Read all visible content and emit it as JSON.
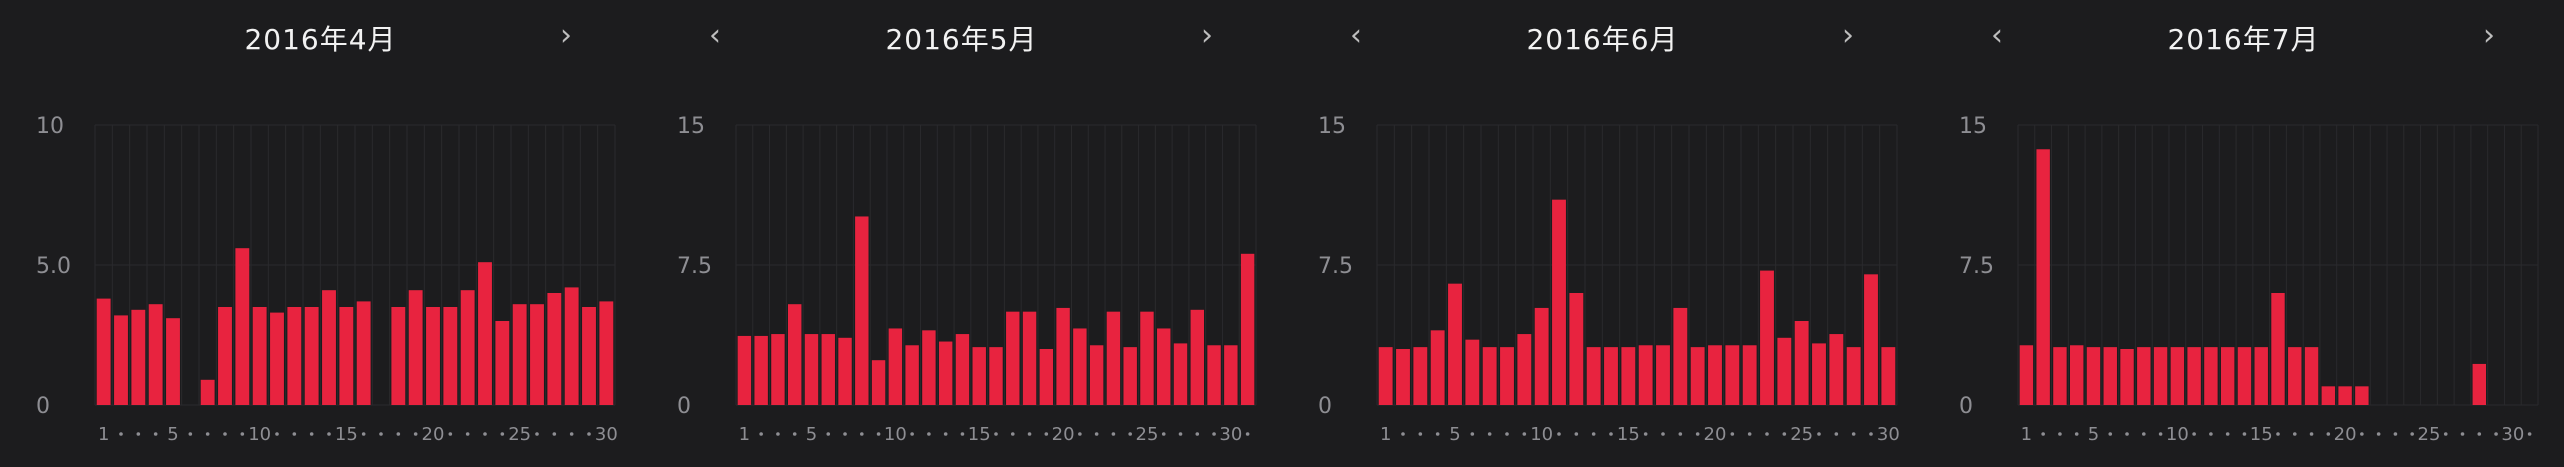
{
  "nav": {
    "prev_glyph": "‹",
    "next_glyph": "›"
  },
  "colors": {
    "bar": "#e8233f",
    "background": "#1c1c1e",
    "grid": "#2a2a2d"
  },
  "panels": [
    {
      "title": "2016年4月",
      "show_prev": false,
      "show_next": true
    },
    {
      "title": "2016年5月",
      "show_prev": true,
      "show_next": true
    },
    {
      "title": "2016年6月",
      "show_prev": true,
      "show_next": true
    },
    {
      "title": "2016年7月",
      "show_prev": true,
      "show_next": true
    }
  ],
  "chart_data": [
    {
      "type": "bar",
      "title": "2016年4月",
      "x": [
        1,
        2,
        3,
        4,
        5,
        6,
        7,
        8,
        9,
        10,
        11,
        12,
        13,
        14,
        15,
        16,
        17,
        18,
        19,
        20,
        21,
        22,
        23,
        24,
        25,
        26,
        27,
        28,
        29,
        30
      ],
      "values": [
        3.8,
        3.2,
        3.4,
        3.6,
        3.1,
        0,
        0.9,
        3.5,
        5.6,
        3.5,
        3.3,
        3.5,
        3.5,
        4.1,
        3.5,
        3.7,
        0,
        3.5,
        4.1,
        3.5,
        3.5,
        4.1,
        5.1,
        3.0,
        3.6,
        3.6,
        4.0,
        4.2,
        3.5,
        3.7
      ],
      "ylim": [
        0,
        10
      ],
      "yticks": [
        "0",
        "5.0",
        "10"
      ],
      "xticks": [
        {
          "x": 1,
          "label": "1"
        },
        {
          "x": 5,
          "label": "5"
        },
        {
          "x": 10,
          "label": "10"
        },
        {
          "x": 15,
          "label": "15"
        },
        {
          "x": 20,
          "label": "20"
        },
        {
          "x": 25,
          "label": "25"
        },
        {
          "x": 30,
          "label": "30"
        }
      ]
    },
    {
      "type": "bar",
      "title": "2016年5月",
      "x": [
        1,
        2,
        3,
        4,
        5,
        6,
        7,
        8,
        9,
        10,
        11,
        12,
        13,
        14,
        15,
        16,
        17,
        18,
        19,
        20,
        21,
        22,
        23,
        24,
        25,
        26,
        27,
        28,
        29,
        30,
        31
      ],
      "values": [
        3.7,
        3.7,
        3.8,
        5.4,
        3.8,
        3.8,
        3.6,
        10.1,
        2.4,
        4.1,
        3.2,
        4.0,
        3.4,
        3.8,
        3.1,
        3.1,
        5.0,
        5.0,
        3.0,
        5.2,
        4.1,
        3.2,
        5.0,
        3.1,
        5.0,
        4.1,
        3.3,
        5.1,
        3.2,
        3.2,
        8.1
      ],
      "ylim": [
        0,
        15
      ],
      "yticks": [
        "0",
        "7.5",
        "15"
      ],
      "xticks": [
        {
          "x": 1,
          "label": "1"
        },
        {
          "x": 5,
          "label": "5"
        },
        {
          "x": 10,
          "label": "10"
        },
        {
          "x": 15,
          "label": "15"
        },
        {
          "x": 20,
          "label": "20"
        },
        {
          "x": 25,
          "label": "25"
        },
        {
          "x": 30,
          "label": "30"
        }
      ]
    },
    {
      "type": "bar",
      "title": "2016年6月",
      "x": [
        1,
        2,
        3,
        4,
        5,
        6,
        7,
        8,
        9,
        10,
        11,
        12,
        13,
        14,
        15,
        16,
        17,
        18,
        19,
        20,
        21,
        22,
        23,
        24,
        25,
        26,
        27,
        28,
        29,
        30
      ],
      "values": [
        3.1,
        3.0,
        3.1,
        4.0,
        6.5,
        3.5,
        3.1,
        3.1,
        3.8,
        5.2,
        11.0,
        6.0,
        3.1,
        3.1,
        3.1,
        3.2,
        3.2,
        5.2,
        3.1,
        3.2,
        3.2,
        3.2,
        7.2,
        3.6,
        4.5,
        3.3,
        3.8,
        3.1,
        7.0,
        3.1
      ],
      "ylim": [
        0,
        15
      ],
      "yticks": [
        "0",
        "7.5",
        "15"
      ],
      "xticks": [
        {
          "x": 1,
          "label": "1"
        },
        {
          "x": 5,
          "label": "5"
        },
        {
          "x": 10,
          "label": "10"
        },
        {
          "x": 15,
          "label": "15"
        },
        {
          "x": 20,
          "label": "20"
        },
        {
          "x": 25,
          "label": "25"
        },
        {
          "x": 30,
          "label": "30"
        }
      ]
    },
    {
      "type": "bar",
      "title": "2016年7月",
      "x": [
        1,
        2,
        3,
        4,
        5,
        6,
        7,
        8,
        9,
        10,
        11,
        12,
        13,
        14,
        15,
        16,
        17,
        18,
        19,
        20,
        21,
        22,
        23,
        24,
        25,
        26,
        27,
        28,
        29,
        30,
        31
      ],
      "values": [
        3.2,
        13.7,
        3.1,
        3.2,
        3.1,
        3.1,
        3.0,
        3.1,
        3.1,
        3.1,
        3.1,
        3.1,
        3.1,
        3.1,
        3.1,
        6.0,
        3.1,
        3.1,
        1.0,
        1.0,
        1.0,
        0,
        0,
        0,
        0,
        0,
        0,
        2.2,
        0,
        0,
        0
      ],
      "ylim": [
        0,
        15
      ],
      "yticks": [
        "0",
        "7.5",
        "15"
      ],
      "xticks": [
        {
          "x": 1,
          "label": "1"
        },
        {
          "x": 5,
          "label": "5"
        },
        {
          "x": 10,
          "label": "10"
        },
        {
          "x": 15,
          "label": "15"
        },
        {
          "x": 20,
          "label": "20"
        },
        {
          "x": 25,
          "label": "25"
        },
        {
          "x": 30,
          "label": "30"
        }
      ]
    }
  ]
}
